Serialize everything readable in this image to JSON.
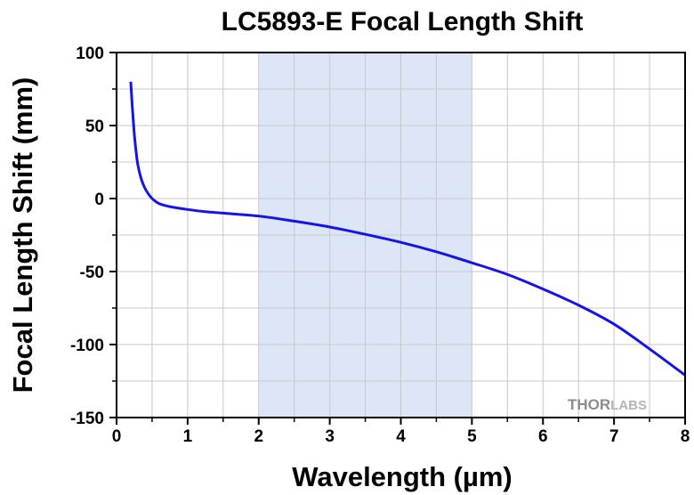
{
  "chart_data": {
    "type": "line",
    "title": "LC5893-E Focal Length Shift",
    "xlabel": "Wavelength (µm)",
    "ylabel": "Focal Length Shift (mm)",
    "xlim": [
      0,
      8
    ],
    "ylim": [
      -150,
      100
    ],
    "x_ticks": [
      0,
      1,
      2,
      3,
      4,
      5,
      6,
      7,
      8
    ],
    "x_tick_labels": [
      "0",
      "1",
      "2",
      "3",
      "4",
      "5",
      "6",
      "7",
      "8"
    ],
    "y_ticks": [
      100,
      50,
      0,
      -50,
      -100,
      -150
    ],
    "y_tick_labels": [
      "100",
      "50",
      "0",
      "-50",
      "-100",
      "-150"
    ],
    "grid": true,
    "highlight_band": {
      "x_start": 2,
      "x_end": 5,
      "color": "#dce6f7"
    },
    "series": [
      {
        "color": "#1414e6",
        "x": [
          0.2,
          0.22,
          0.25,
          0.28,
          0.3,
          0.35,
          0.4,
          0.45,
          0.5,
          0.55,
          0.6,
          0.7,
          0.8,
          1.0,
          1.25,
          1.5,
          2.0,
          2.5,
          3.0,
          3.5,
          4.0,
          4.5,
          5.0,
          5.5,
          6.0,
          6.5,
          7.0,
          7.5,
          8.0
        ],
        "y": [
          80,
          64,
          44,
          30,
          23,
          13,
          7,
          3,
          0,
          -2,
          -3.5,
          -5,
          -6,
          -7.5,
          -9,
          -10,
          -12,
          -15.5,
          -19.5,
          -24.5,
          -30,
          -36.5,
          -44,
          -52,
          -62,
          -73,
          -86,
          -103,
          -121
        ]
      }
    ],
    "watermark": {
      "bold": "THOR",
      "light": "LABS"
    }
  }
}
